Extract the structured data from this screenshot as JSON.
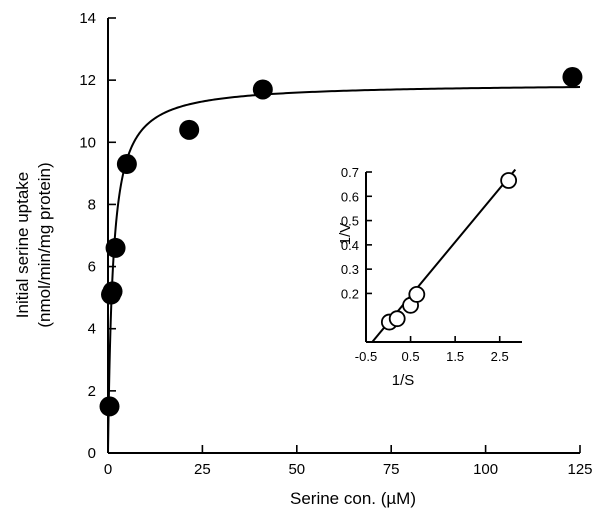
{
  "chart_data": [
    {
      "type": "scatter",
      "xlabel": "Serine con. (µM)",
      "ylabel_line1": "Initial serine uptake",
      "ylabel_line2": "(nmol/min/mg protein)",
      "xlim": [
        0,
        125
      ],
      "ylim": [
        0,
        14
      ],
      "x_ticks": [
        0,
        25,
        50,
        75,
        100,
        125
      ],
      "y_ticks": [
        0,
        2,
        4,
        6,
        8,
        10,
        12,
        14
      ],
      "marker": "filled-circle",
      "points": [
        {
          "x": 0.4,
          "y": 1.5
        },
        {
          "x": 0.8,
          "y": 5.1
        },
        {
          "x": 1.2,
          "y": 5.2
        },
        {
          "x": 2.0,
          "y": 6.6
        },
        {
          "x": 5.0,
          "y": 9.3
        },
        {
          "x": 21.5,
          "y": 10.4
        },
        {
          "x": 41.0,
          "y": 11.7
        },
        {
          "x": 123.0,
          "y": 12.1
        }
      ],
      "fit_curve": {
        "model": "michaelis-menten",
        "vmax": 11.9,
        "km": 1.3,
        "x_end": 125
      }
    },
    {
      "type": "scatter",
      "role": "inset",
      "xlabel": "1/S",
      "ylabel": "1/V",
      "xlim": [
        -0.5,
        3.0
      ],
      "ylim": [
        0.0,
        0.7
      ],
      "x_ticks": [
        -0.5,
        0.5,
        1.5,
        2.5
      ],
      "y_ticks": [
        0.2,
        0.3,
        0.4,
        0.5,
        0.6,
        0.7
      ],
      "marker": "open-circle",
      "points": [
        {
          "x": 0.024,
          "y": 0.082
        },
        {
          "x": 0.2,
          "y": 0.096
        },
        {
          "x": 0.5,
          "y": 0.151
        },
        {
          "x": 0.64,
          "y": 0.196
        },
        {
          "x": 2.7,
          "y": 0.665
        }
      ],
      "fit_line": {
        "x0": -0.36,
        "y0": 0.0,
        "x1": 2.85,
        "y1": 0.71
      }
    }
  ]
}
